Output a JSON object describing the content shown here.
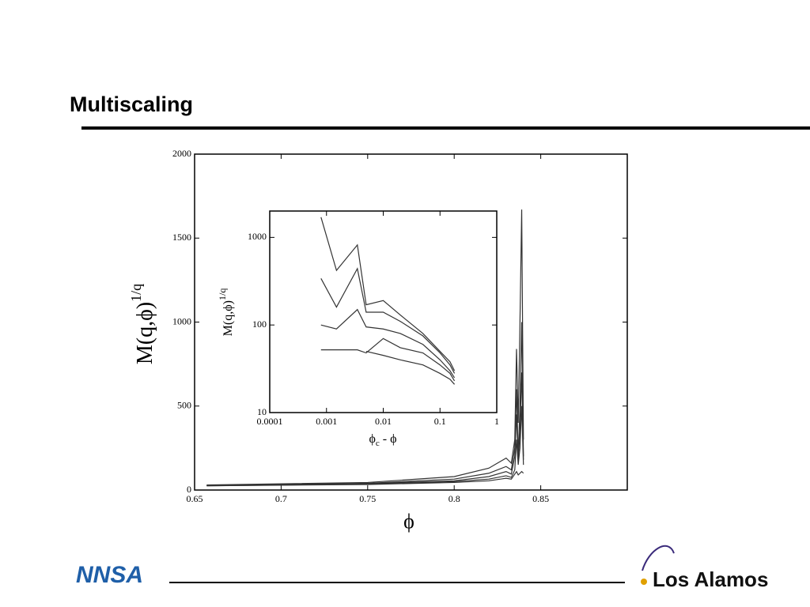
{
  "header": {
    "title": "Multiscaling"
  },
  "footer": {
    "left_logo": "NNSA",
    "right_logo": "Los Alamos"
  },
  "chart_data": [
    {
      "type": "line",
      "y_label": "M(q,ϕ)",
      "y_label_superscript": "1/q",
      "x_label": "ϕ",
      "xlim": [
        0.65,
        0.9
      ],
      "xticks": [
        0.65,
        0.7,
        0.75,
        0.8,
        0.85
      ],
      "ylim": [
        0,
        2000
      ],
      "yticks": [
        0,
        500,
        1000,
        1500,
        2000
      ],
      "x": [
        0.657,
        0.75,
        0.8,
        0.82,
        0.83,
        0.833,
        0.835,
        0.836,
        0.837,
        0.838,
        0.839,
        0.84
      ],
      "series": [
        {
          "color": "#333333",
          "values": [
            30,
            45,
            80,
            130,
            190,
            160,
            300,
            840,
            400,
            1000,
            1670,
            300
          ]
        },
        {
          "color": "#333333",
          "values": [
            28,
            40,
            65,
            100,
            140,
            120,
            250,
            600,
            200,
            500,
            1000,
            200
          ]
        },
        {
          "color": "#333333",
          "values": [
            27,
            38,
            55,
            80,
            110,
            95,
            200,
            450,
            180,
            350,
            700,
            180
          ]
        },
        {
          "color": "#333333",
          "values": [
            25,
            35,
            50,
            65,
            85,
            75,
            120,
            300,
            150,
            250,
            500,
            150
          ]
        },
        {
          "color": "#333333",
          "values": [
            25,
            33,
            45,
            55,
            70,
            65,
            95,
            110,
            90,
            100,
            110,
            100
          ]
        }
      ]
    },
    {
      "type": "line",
      "log_x": true,
      "log_y": true,
      "y_label": "M(q,ϕ)",
      "y_label_superscript": "1/q",
      "x_label": "ϕ",
      "x_label_subscript": "c",
      "x_label_suffix": "- ϕ",
      "xlim": [
        0.0001,
        1
      ],
      "xticks": [
        0.0001,
        0.001,
        0.01,
        0.1,
        1
      ],
      "ylim": [
        10,
        2000
      ],
      "yticks": [
        10,
        100,
        1000
      ],
      "x": [
        0.0008,
        0.0015,
        0.0035,
        0.005,
        0.01,
        0.02,
        0.05,
        0.1,
        0.15,
        0.18
      ],
      "series": [
        {
          "color": "#333333",
          "values": [
            1700,
            420,
            820,
            170,
            190,
            130,
            80,
            50,
            38,
            30
          ]
        },
        {
          "color": "#333333",
          "values": [
            340,
            160,
            440,
            140,
            140,
            110,
            75,
            48,
            35,
            28
          ]
        },
        {
          "color": "#333333",
          "values": [
            100,
            90,
            150,
            95,
            90,
            80,
            60,
            40,
            30,
            25
          ]
        },
        {
          "color": "#333333",
          "values": [
            52,
            52,
            52,
            48,
            70,
            55,
            48,
            35,
            28,
            23
          ]
        },
        {
          "color": "#333333",
          "values": [
            null,
            null,
            null,
            50,
            45,
            40,
            35,
            28,
            24,
            21
          ]
        }
      ]
    }
  ]
}
